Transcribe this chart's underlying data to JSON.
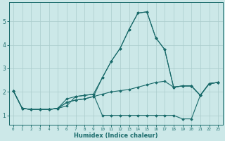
{
  "title": "",
  "xlabel": "Humidex (Indice chaleur)",
  "ylabel": "",
  "bg_color": "#cce8e8",
  "grid_color": "#aacccc",
  "line_color": "#1a6b6b",
  "xlim": [
    -0.5,
    23.5
  ],
  "ylim": [
    0.6,
    5.8
  ],
  "xticks": [
    0,
    1,
    2,
    3,
    4,
    5,
    6,
    7,
    8,
    9,
    10,
    11,
    12,
    13,
    14,
    15,
    16,
    17,
    18,
    19,
    20,
    21,
    22,
    23
  ],
  "yticks": [
    1,
    2,
    3,
    4,
    5
  ],
  "lines": [
    [
      2.05,
      1.3,
      1.25,
      1.25,
      1.25,
      1.3,
      1.7,
      1.8,
      1.85,
      1.9,
      1.0,
      1.0,
      1.0,
      1.0,
      1.0,
      1.0,
      1.0,
      1.0,
      1.0,
      0.85,
      0.85,
      1.85,
      2.35,
      2.4
    ],
    [
      2.05,
      1.3,
      1.25,
      1.25,
      1.25,
      1.3,
      1.55,
      1.65,
      1.7,
      1.8,
      1.9,
      2.0,
      2.05,
      2.1,
      2.2,
      2.3,
      2.4,
      2.45,
      2.2,
      2.25,
      2.25,
      1.85,
      2.35,
      2.4
    ],
    [
      2.05,
      1.3,
      1.25,
      1.25,
      1.25,
      1.3,
      1.55,
      1.65,
      1.7,
      1.8,
      2.6,
      3.3,
      3.85,
      4.65,
      5.35,
      5.4,
      4.3,
      3.8,
      2.2,
      2.25,
      2.25,
      1.85,
      2.35,
      2.4
    ],
    [
      2.05,
      1.3,
      1.25,
      1.25,
      1.25,
      1.3,
      1.4,
      1.8,
      1.85,
      1.9,
      2.6,
      3.3,
      3.85,
      4.65,
      5.35,
      5.4,
      4.3,
      3.8,
      2.2,
      2.25,
      2.25,
      1.85,
      2.35,
      2.4
    ]
  ]
}
